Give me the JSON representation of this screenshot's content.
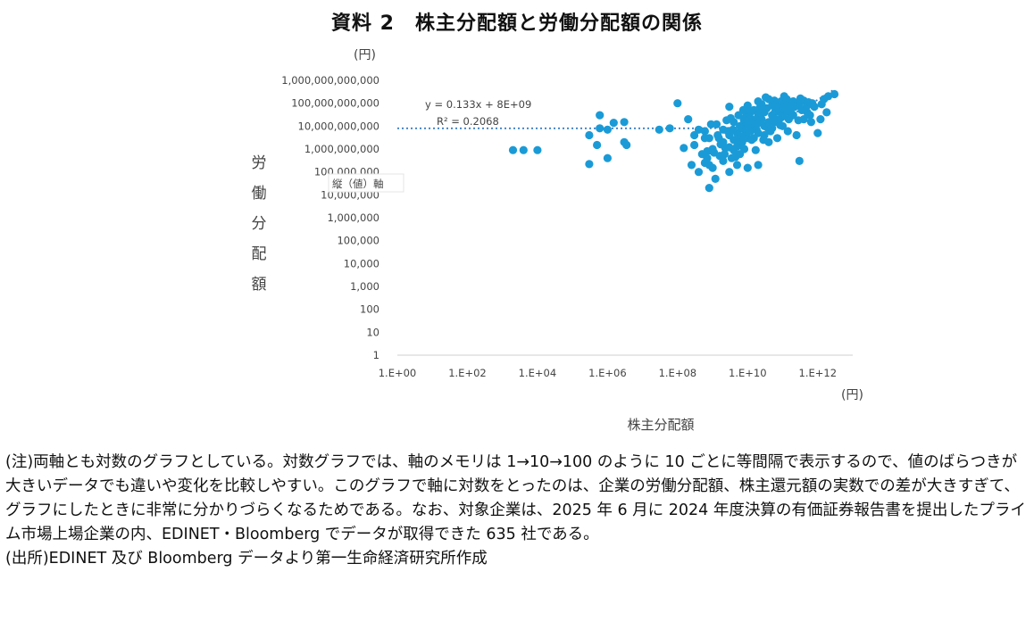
{
  "title": "資料 2　株主分配額と労働分配額の関係",
  "notes": {
    "note": "(注)両軸とも対数のグラフとしている。対数グラフでは、軸のメモリは 1→10→100 のように 10 ごとに等間隔で表示するので、値のばらつきが大きいデータでも違いや変化を比較しやすい。このグラフで軸に対数をとったのは、企業の労働分配額、株主還元額の実数での差が大きすぎて、グラフにしたときに非常に分かりづらくなるためである。なお、対象企業は、2025 年 6 月に 2024 年度決算の有価証券報告書を提出したプライム市場上場企業の内、EDINET・Bloomberg でデータが取得できた 635 社である。",
    "source": "(出所)EDINET 及び Bloomberg データより第一生命経済研究所作成"
  },
  "chart_data": {
    "type": "scatter",
    "xlabel": "株主分配額",
    "ylabel": "労働分配額",
    "x_unit": "(円)",
    "y_unit": "(円)",
    "x_scale": "log",
    "y_scale": "log",
    "xlim": [
      1,
      10000000000000.0
    ],
    "ylim": [
      1,
      1000000000000.0
    ],
    "x_ticks": [
      "1.E+00",
      "1.E+02",
      "1.E+04",
      "1.E+06",
      "1.E+08",
      "1.E+10",
      "1.E+12"
    ],
    "x_tick_values": [
      1,
      100,
      10000,
      1000000,
      100000000,
      10000000000,
      1000000000000
    ],
    "y_ticks": [
      "1",
      "10",
      "100",
      "1,000",
      "10,000",
      "100,000",
      "1,000,000",
      "10,000,000",
      "100,000,000",
      "1,000,000,000",
      "10,000,000,000",
      "100,000,000,000",
      "1,000,000,000,000"
    ],
    "y_tick_values": [
      1,
      10,
      100,
      1000,
      10000,
      100000,
      1000000,
      10000000,
      100000000,
      1000000000,
      10000000000,
      100000000000,
      1000000000000
    ],
    "grid": false,
    "legend": "none",
    "marker_color": "#1a9bd7",
    "trendline": {
      "type": "linear",
      "slope": 0.133,
      "intercept": 8000000000.0,
      "equation_text": "y = 0.133x + 8E+09",
      "r2_text": "R² = 0.2068",
      "color": "#3a7fc4"
    },
    "note_label": "縦（値）軸",
    "points": [
      [
        1,
        25000000.0
      ],
      [
        2000.0,
        900000000.0
      ],
      [
        4000.0,
        900000000.0
      ],
      [
        10000.0,
        900000000.0
      ],
      [
        300000.0,
        4000000000.0
      ],
      [
        300000.0,
        220000000.0
      ],
      [
        500000.0,
        1500000000.0
      ],
      [
        600000.0,
        30000000000.0
      ],
      [
        600000.0,
        8000000000.0
      ],
      [
        1000000.0,
        7000000000.0
      ],
      [
        1500000.0,
        14000000000.0
      ],
      [
        1000000.0,
        400000000.0
      ],
      [
        3000000.0,
        15000000000.0
      ],
      [
        3500000.0,
        1500000000.0
      ],
      [
        3000000.0,
        2000000000.0
      ],
      [
        30000000.0,
        7000000000.0
      ],
      [
        60000000.0,
        8000000000.0
      ],
      [
        100000000.0,
        100000000000.0
      ],
      [
        150000000.0,
        1100000000.0
      ],
      [
        200000000.0,
        20000000000.0
      ],
      [
        300000000.0,
        4000000000.0
      ],
      [
        250000000.0,
        200000000.0
      ],
      [
        300000000.0,
        1500000000.0
      ],
      [
        400000000.0,
        7000000000.0
      ],
      [
        500000000.0,
        600000000.0
      ],
      [
        600000000.0,
        250000000.0
      ],
      [
        400000000.0,
        100000000.0
      ],
      [
        600000000.0,
        6000000000.0
      ],
      [
        800000000.0,
        3000000000.0
      ],
      [
        1000000000.0,
        1000000000.0
      ],
      [
        800000000.0,
        200000000.0
      ],
      [
        1000000000.0,
        150000000.0
      ],
      [
        700000000.0,
        400000000.0
      ],
      [
        800000000.0,
        20000000.0
      ],
      [
        1200000000.0,
        50000000.0
      ],
      [
        1000000000.0,
        800000000.0
      ],
      [
        1300000000.0,
        12000000000.0
      ],
      [
        1500000000.0,
        3000000000.0
      ],
      [
        1600000000.0,
        500000000.0
      ],
      [
        2000000000.0,
        7000000000.0
      ],
      [
        2000000000.0,
        2000000000.0
      ],
      [
        2000000000.0,
        300000000.0
      ],
      [
        2200000000.0,
        600000000.0
      ],
      [
        2500000000.0,
        18000000000.0
      ],
      [
        3000000000.0,
        4000000000.0
      ],
      [
        3000000000.0,
        1200000000.0
      ],
      [
        3000000000.0,
        100000000.0
      ],
      [
        3500000000.0,
        400000000.0
      ],
      [
        3000000000.0,
        70000000000.0
      ],
      [
        4000000000.0,
        15000000000.0
      ],
      [
        4000000000.0,
        2500000000.0
      ],
      [
        4000000000.0,
        900000000.0
      ],
      [
        5000000000.0,
        5000000000.0
      ],
      [
        5000000000.0,
        1300000000.0
      ],
      [
        5000000000.0,
        200000000.0
      ],
      [
        5500000000.0,
        30000000000.0
      ],
      [
        6000000000.0,
        10000000000.0
      ],
      [
        6000000000.0,
        3500000000.0
      ],
      [
        6000000000.0,
        600000000.0
      ],
      [
        7000000000.0,
        2000000000.0
      ],
      [
        7000000000.0,
        8000000000.0
      ],
      [
        7500000000.0,
        50000000000.0
      ],
      [
        8000000000.0,
        15000000000.0
      ],
      [
        8000000000.0,
        4000000000.0
      ],
      [
        8000000000.0,
        1000000000.0
      ],
      [
        9000000000.0,
        25000000000.0
      ],
      [
        9000000000.0,
        7000000000.0
      ],
      [
        10000000000.0,
        3000000000.0
      ],
      [
        10000000000.0,
        12000000000.0
      ],
      [
        10000000000.0,
        80000000000.0
      ],
      [
        10000000000.0,
        150000000.0
      ],
      [
        12000000000.0,
        40000000000.0
      ],
      [
        12000000000.0,
        6000000000.0
      ],
      [
        13000000000.0,
        20000000000.0
      ],
      [
        14000000000.0,
        10000000000.0
      ],
      [
        15000000000.0,
        3000000000.0
      ],
      [
        15000000000.0,
        50000000000.0
      ],
      [
        16000000000.0,
        15000000000.0
      ],
      [
        18000000000.0,
        7000000000.0
      ],
      [
        20000000000.0,
        30000000000.0
      ],
      [
        20000000000.0,
        120000000000.0
      ],
      [
        20000000000.0,
        5000000000.0
      ],
      [
        20000000000.0,
        200000000.0
      ],
      [
        25000000000.0,
        20000000000.0
      ],
      [
        25000000000.0,
        90000000000.0
      ],
      [
        30000000000.0,
        10000000000.0
      ],
      [
        30000000000.0,
        40000000000.0
      ],
      [
        30000000000.0,
        4000000000.0
      ],
      [
        35000000000.0,
        60000000000.0
      ],
      [
        40000000000.0,
        15000000000.0
      ],
      [
        40000000000.0,
        150000000000.0
      ],
      [
        40000000000.0,
        2000000000.0
      ],
      [
        50000000000.0,
        30000000000.0
      ],
      [
        50000000000.0,
        80000000000.0
      ],
      [
        50000000000.0,
        8000000000.0
      ],
      [
        60000000000.0,
        40000000000.0
      ],
      [
        60000000000.0,
        15000000000.0
      ],
      [
        70000000000.0,
        100000000000.0
      ],
      [
        70000000000.0,
        3000000000.0
      ],
      [
        80000000000.0,
        50000000000.0
      ],
      [
        80000000000.0,
        20000000000.0
      ],
      [
        90000000000.0,
        120000000000.0
      ],
      [
        100000000000.0,
        30000000000.0
      ],
      [
        100000000000.0,
        60000000000.0
      ],
      [
        100000000000.0,
        10000000000.0
      ],
      [
        120000000000.0,
        80000000000.0
      ],
      [
        130000000000.0,
        150000000000.0
      ],
      [
        150000000000.0,
        40000000000.0
      ],
      [
        150000000000.0,
        20000000000.0
      ],
      [
        160000000000.0,
        100000000000.0
      ],
      [
        180000000000.0,
        60000000000.0
      ],
      [
        200000000000.0,
        120000000000.0
      ],
      [
        200000000000.0,
        30000000000.0
      ],
      [
        250000000000.0,
        80000000000.0
      ],
      [
        250000000000.0,
        4000000000.0
      ],
      [
        300000000000.0,
        100000000000.0
      ],
      [
        300000000000.0,
        300000000.0
      ],
      [
        350000000000.0,
        50000000000.0
      ],
      [
        400000000000.0,
        130000000000.0
      ],
      [
        400000000000.0,
        20000000000.0
      ],
      [
        500000000000.0,
        40000000000.0
      ],
      [
        500000000000.0,
        80000000000.0
      ],
      [
        600000000000.0,
        30000000000.0
      ],
      [
        700000000000.0,
        100000000000.0
      ],
      [
        1000000000000.0,
        5000000000.0
      ],
      [
        1200000000000.0,
        20000000000.0
      ],
      [
        1500000000000.0,
        150000000000.0
      ],
      [
        2000000000000.0,
        200000000000.0
      ],
      [
        3000000000000.0,
        250000000000.0
      ],
      [
        900000000.0,
        12000000000.0
      ],
      [
        1100000000.0,
        700000000.0
      ],
      [
        1700000000.0,
        1600000000.0
      ],
      [
        2700000000.0,
        6000000000.0
      ],
      [
        3300000000.0,
        22000000000.0
      ],
      [
        4500000000.0,
        450000000.0
      ],
      [
        6500000000.0,
        1600000000.0
      ],
      [
        9500000000.0,
        33000000000.0
      ],
      [
        11000000000.0,
        6500000000.0
      ],
      [
        17000000000.0,
        900000000.0
      ],
      [
        22000000000.0,
        60000000000.0
      ],
      [
        28000000000.0,
        2500000000.0
      ],
      [
        33000000000.0,
        180000000000.0
      ],
      [
        45000000000.0,
        6000000000.0
      ],
      [
        55000000000.0,
        22000000000.0
      ],
      [
        65000000000.0,
        70000000000.0
      ],
      [
        85000000000.0,
        11000000000.0
      ],
      [
        110000000000.0,
        200000000000.0
      ],
      [
        140000000000.0,
        6000000000.0
      ],
      [
        170000000000.0,
        35000000000.0
      ],
      [
        220000000000.0,
        70000000000.0
      ],
      [
        280000000000.0,
        18000000000.0
      ],
      [
        320000000000.0,
        160000000000.0
      ],
      [
        450000000000.0,
        60000000000.0
      ],
      [
        550000000000.0,
        110000000000.0
      ],
      [
        650000000000.0,
        15000000000.0
      ],
      [
        800000000000.0,
        70000000000.0
      ],
      [
        1300000000000.0,
        90000000000.0
      ],
      [
        1800000000000.0,
        40000000000.0
      ],
      [
        700000000.0,
        800000000.0
      ],
      [
        600000000.0,
        3000000000.0
      ],
      [
        1400000000.0,
        4000000000.0
      ],
      [
        2300000000.0,
        1100000000.0
      ],
      [
        3800000000.0,
        7000000000.0
      ],
      [
        5200000000.0,
        2800000000.0
      ],
      [
        7800000000.0,
        19000000000.0
      ],
      [
        10500000000.0,
        45000000000.0
      ],
      [
        13000000000.0,
        2500000000.0
      ],
      [
        19000000000.0,
        13000000000.0
      ],
      [
        26000000000.0,
        45000000000.0
      ],
      [
        38000000000.0,
        8000000000.0
      ],
      [
        58000000000.0,
        130000000000.0
      ],
      [
        75000000000.0,
        45000000000.0
      ],
      [
        95000000000.0,
        25000000000.0
      ],
      [
        125000000000.0,
        45000000000.0
      ],
      [
        190000000000.0,
        90000000000.0
      ]
    ]
  }
}
